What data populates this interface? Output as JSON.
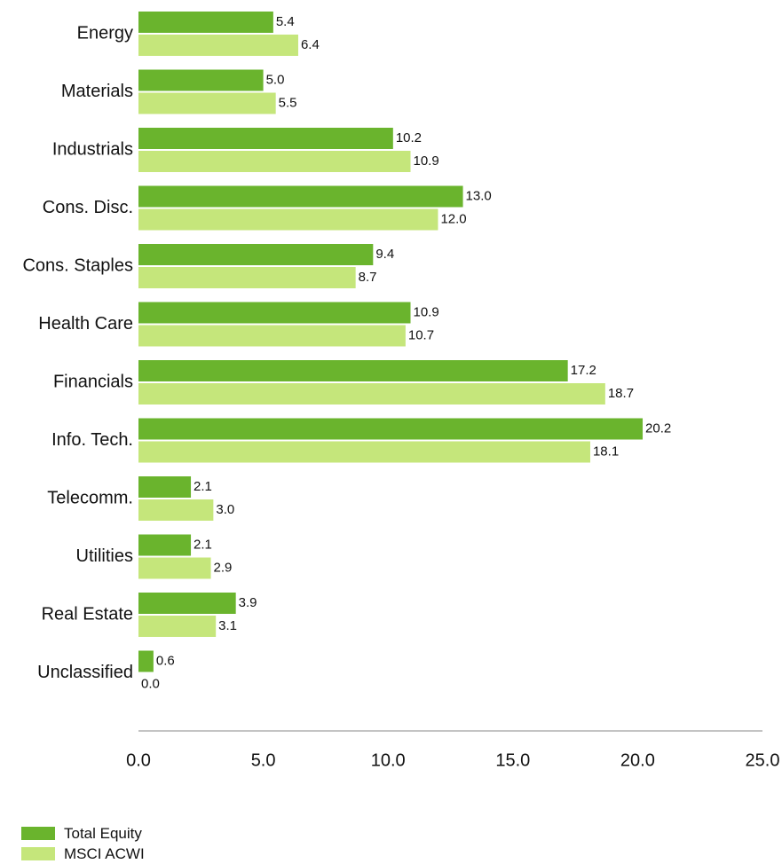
{
  "chart_data": {
    "type": "bar",
    "orientation": "horizontal",
    "categories": [
      "Energy",
      "Materials",
      "Industrials",
      "Cons. Disc.",
      "Cons. Staples",
      "Health Care",
      "Financials",
      "Info. Tech.",
      "Telecomm.",
      "Utilities",
      "Real Estate",
      "Unclassified"
    ],
    "series": [
      {
        "name": "Total Equity",
        "color": "#6ab42d",
        "values": [
          5.4,
          5.0,
          10.2,
          13.0,
          9.4,
          10.9,
          17.2,
          20.2,
          2.1,
          2.1,
          3.9,
          0.6
        ]
      },
      {
        "name": "MSCI ACWI",
        "color": "#c5e67b",
        "values": [
          6.4,
          5.5,
          10.9,
          12.0,
          8.7,
          10.7,
          18.7,
          18.1,
          3.0,
          2.9,
          3.1,
          0.0
        ]
      }
    ],
    "xlim": [
      0,
      25
    ],
    "xticks": [
      "0.0",
      "5.0",
      "10.0",
      "15.0",
      "20.0",
      "25.0"
    ],
    "grid": false,
    "legend_position": "bottom-left"
  }
}
